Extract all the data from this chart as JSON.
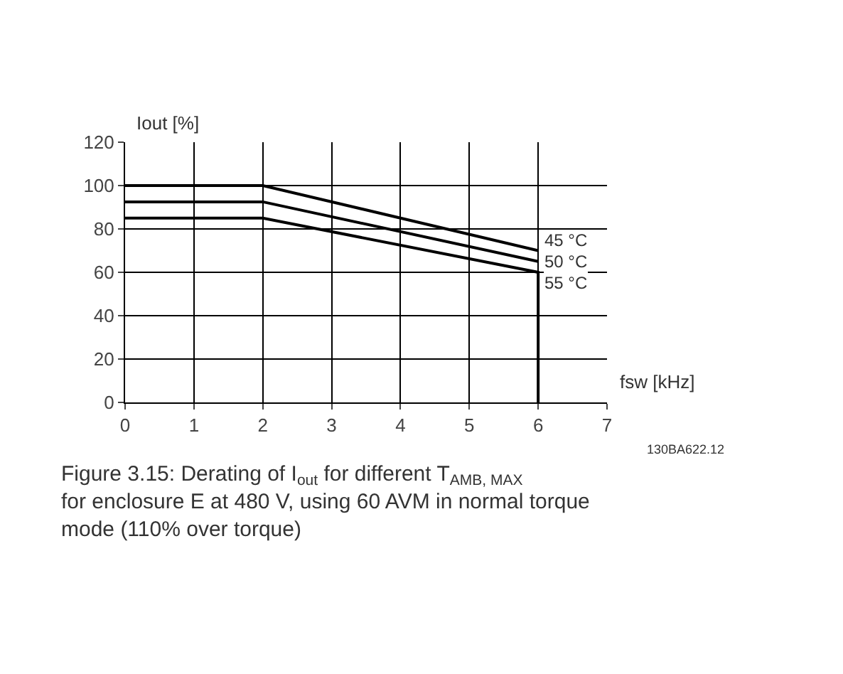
{
  "chart_data": {
    "type": "line",
    "xlabel": "fsw [kHz]",
    "ylabel": "Iout [%]",
    "xlim": [
      0,
      7
    ],
    "xticks": [
      0,
      1,
      2,
      3,
      4,
      5,
      6,
      7
    ],
    "ylim": [
      0,
      120
    ],
    "yticks": [
      0,
      20,
      40,
      60,
      80,
      100,
      120
    ],
    "grid": true,
    "legend": false,
    "line_style": "solid",
    "series": [
      {
        "name": "45 °C",
        "color": "#000000",
        "x": [
          0,
          2,
          6
        ],
        "values": [
          100,
          100,
          70
        ]
      },
      {
        "name": "50 °C",
        "color": "#000000",
        "x": [
          0,
          2,
          6
        ],
        "values": [
          92.5,
          92.5,
          65
        ]
      },
      {
        "name": "55 °C",
        "color": "#000000",
        "x": [
          0,
          2,
          6,
          6
        ],
        "values": [
          85,
          85,
          60,
          0
        ]
      }
    ],
    "annotations": [
      "130BA622.12",
      "Figure 3.15: Derating of I$_{out}$ for different T$_{AMB, MAX}$ for enclosure E at 480 V, using 60 AVM in normal torque mode (110% over torque)"
    ]
  }
}
